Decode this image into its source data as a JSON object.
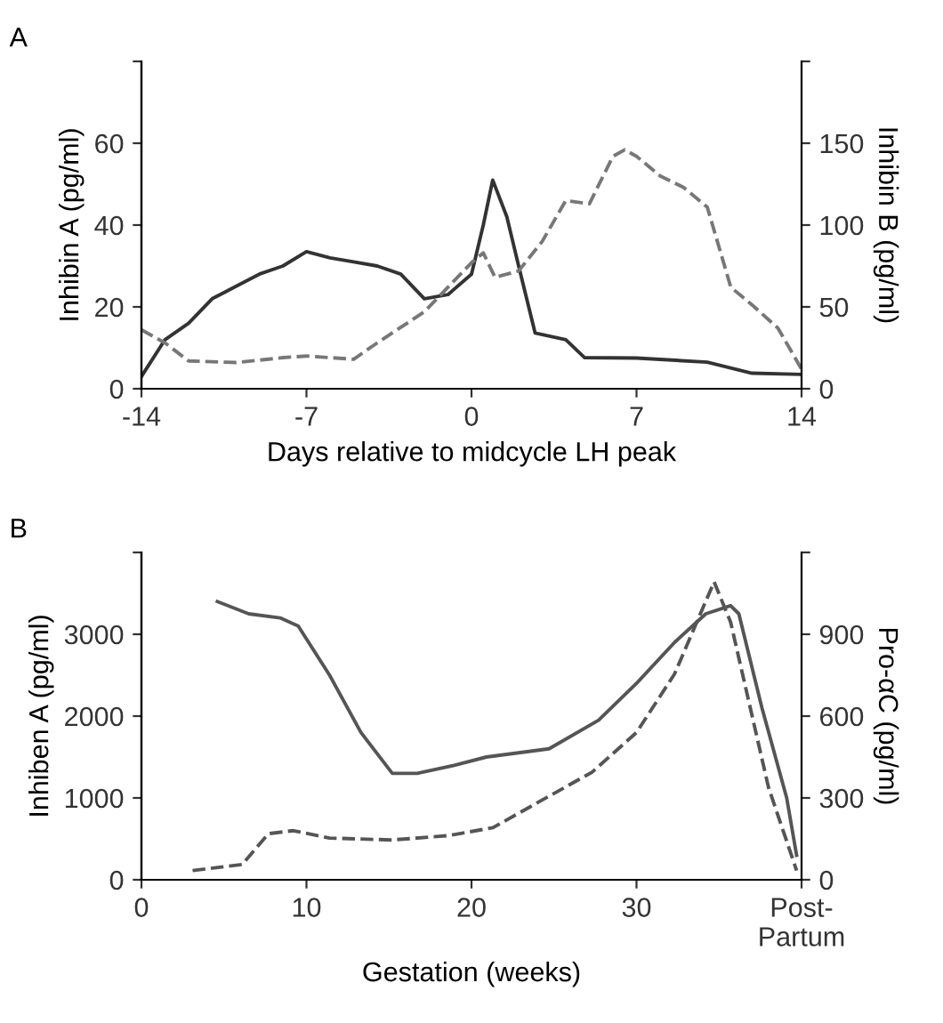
{
  "chart_data": [
    {
      "type": "line",
      "title": "A",
      "xlabel": "Days relative to midcycle LH peak",
      "ylabel": "Inhibin A (pg/ml)",
      "y2label": "Inhibin B (pg/ml)",
      "xlim": [
        -14,
        14
      ],
      "xticks": [
        -14,
        -7,
        0,
        7,
        14
      ],
      "ylim": [
        0,
        80
      ],
      "yticks": [
        0,
        20,
        40,
        60,
        {
          "value": 80,
          "label": null
        }
      ],
      "y2lim": [
        0,
        200
      ],
      "y2ticks": [
        0,
        50,
        100,
        150,
        {
          "value": 200,
          "label": null
        }
      ],
      "grid": false,
      "marker": "none",
      "series": [
        {
          "color": "#333333",
          "line_style": "solid",
          "x": [
            -14,
            -13,
            -12,
            -11,
            -10,
            -9,
            -8,
            -7,
            -6,
            -5,
            -4,
            -3,
            -2,
            -1,
            0,
            0.5,
            0.9,
            1.5,
            2,
            2.7,
            4,
            4.8,
            7,
            10,
            11.9,
            14
          ],
          "values": [
            3,
            12,
            16,
            22,
            25,
            28,
            30,
            33.5,
            32,
            31,
            30,
            28,
            22,
            23,
            28,
            40,
            51,
            42,
            30,
            13.6,
            12,
            7.6,
            7.5,
            6.5,
            3.8,
            3.5
          ]
        },
        {
          "color": "#777777",
          "line_style": "dashed",
          "axis": "y2",
          "x": [
            -14,
            -13,
            -12,
            -10,
            -8,
            -7,
            -5,
            -4,
            -2,
            0,
            0.5,
            1,
            2,
            3,
            4,
            5,
            6,
            6.5,
            7,
            8,
            9,
            10,
            11,
            12,
            13,
            14
          ],
          "values": [
            36,
            28,
            17,
            16,
            19,
            20,
            18,
            28,
            47,
            77,
            83,
            68,
            72,
            90,
            115,
            113,
            142,
            146,
            142,
            130,
            123,
            111,
            62,
            50,
            37,
            12
          ]
        }
      ]
    },
    {
      "type": "line",
      "title": "B",
      "xlabel": "Gestation (weeks)",
      "ylabel": "Inhiben A (pg/ml)",
      "y2label": "Pro-αC (pg/ml)",
      "xlim": [
        0,
        40
      ],
      "xticks": [
        0,
        10,
        20,
        30,
        {
          "value": 40,
          "label": "Post-\nPartum"
        }
      ],
      "ylim": [
        0,
        4000
      ],
      "yticks": [
        0,
        1000,
        2000,
        3000,
        {
          "value": 4000,
          "label": null
        }
      ],
      "y2lim": [
        0,
        1200
      ],
      "y2ticks": [
        0,
        300,
        600,
        900,
        {
          "value": 1200,
          "label": null
        }
      ],
      "grid": false,
      "marker": "none",
      "series": [
        {
          "color": "#555555",
          "line_style": "solid",
          "x": [
            4.6,
            6.5,
            8.4,
            9.5,
            11.4,
            13.3,
            15.2,
            16.7,
            19,
            20.9,
            24.7,
            27.7,
            30,
            32.3,
            34.2,
            35.7,
            36.2,
            37.6,
            39.1,
            39.7
          ],
          "values": [
            3400,
            3250,
            3200,
            3100,
            2500,
            1800,
            1300,
            1300,
            1400,
            1500,
            1600,
            1950,
            2400,
            2900,
            3250,
            3350,
            3250,
            2100,
            1000,
            300
          ]
        },
        {
          "color": "#555555",
          "line_style": "dashed",
          "axis": "y2",
          "x": [
            3.1,
            6.1,
            7.7,
            9.2,
            11.4,
            15.2,
            18.6,
            21.3,
            24.3,
            27.3,
            30,
            32.3,
            34.7,
            35.7,
            38,
            39.7
          ],
          "values": [
            34,
            56,
            169,
            180,
            153,
            146,
            162,
            191,
            293,
            394,
            540,
            754,
            1092,
            945,
            338,
            34
          ]
        }
      ]
    }
  ]
}
